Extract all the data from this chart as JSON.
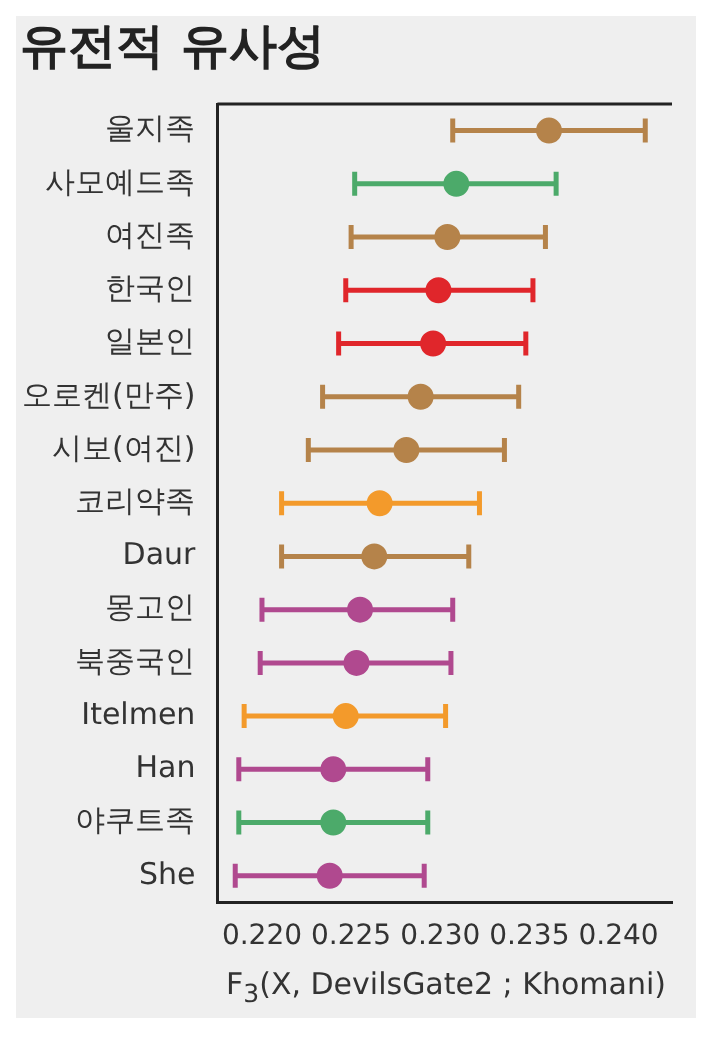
{
  "chart_data": {
    "type": "scatter",
    "orientation": "horizontal",
    "title": "유전적 유사성",
    "xlabel": "F$_{3}$(X, DevilsGate2 ; Khomani)",
    "categories": [
      "울지족",
      "사모예드족",
      "여진족",
      "한국인",
      "일본인",
      "오로켄(만주)",
      "시보(여진)",
      "코리약족",
      "Daur",
      "몽고인",
      "북중국인",
      "Itelmen",
      "Han",
      "야쿠트족",
      "She"
    ],
    "values": [
      0.2361,
      0.2309,
      0.2304,
      0.2299,
      0.2296,
      0.2289,
      0.2281,
      0.2266,
      0.2263,
      0.2255,
      0.2253,
      0.2247,
      0.224,
      0.224,
      0.2238
    ],
    "errors": [
      [
        0.2307,
        0.2415
      ],
      [
        0.2252,
        0.2365
      ],
      [
        0.225,
        0.2359
      ],
      [
        0.2247,
        0.2352
      ],
      [
        0.2243,
        0.2348
      ],
      [
        0.2234,
        0.2344
      ],
      [
        0.2226,
        0.2336
      ],
      [
        0.2211,
        0.2322
      ],
      [
        0.2211,
        0.2316
      ],
      [
        0.22,
        0.2307
      ],
      [
        0.2199,
        0.2306
      ],
      [
        0.219,
        0.2303
      ],
      [
        0.2187,
        0.2293
      ],
      [
        0.2187,
        0.2293
      ],
      [
        0.2185,
        0.2291
      ]
    ],
    "colors": [
      "#b5834a",
      "#4caa6a",
      "#b5834a",
      "#e0262b",
      "#e0262b",
      "#b5834a",
      "#b5834a",
      "#f39a2b",
      "#b5834a",
      "#b0498f",
      "#b0498f",
      "#f39a2b",
      "#b0498f",
      "#4caa6a",
      "#b0498f"
    ],
    "xlim": [
      0.2175,
      0.243
    ],
    "xticks": [
      {
        "value": 0.22,
        "label": "0.220"
      },
      {
        "value": 0.225,
        "label": "0.225"
      },
      {
        "value": 0.23,
        "label": "0.230"
      },
      {
        "value": 0.235,
        "label": "0.235"
      },
      {
        "value": 0.24,
        "label": "0.240"
      }
    ],
    "grid": false,
    "legend": false,
    "marker": "circle"
  }
}
